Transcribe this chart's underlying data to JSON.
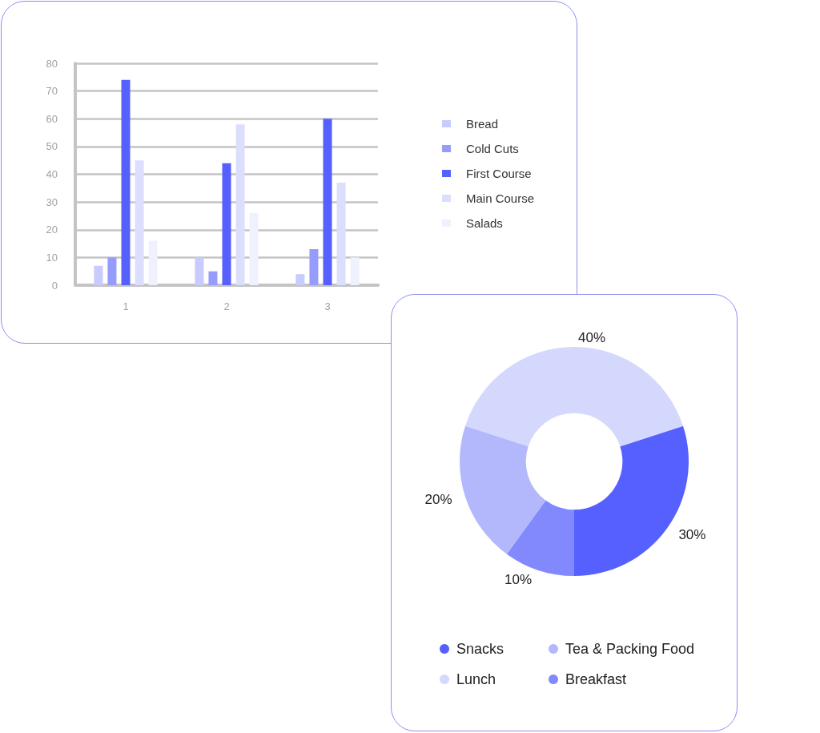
{
  "chart_data": [
    {
      "type": "bar",
      "categories": [
        "1",
        "2",
        "3"
      ],
      "series": [
        {
          "name": "Bread",
          "color": "#c8cbfd",
          "values": [
            7,
            10,
            4
          ]
        },
        {
          "name": "Cold Cuts",
          "color": "#959cfb",
          "values": [
            10,
            5,
            13
          ]
        },
        {
          "name": "First Course",
          "color": "#5560fe",
          "values": [
            74,
            44,
            60
          ]
        },
        {
          "name": "Main Course",
          "color": "#dcdefd",
          "values": [
            45,
            58,
            37
          ]
        },
        {
          "name": "Salads",
          "color": "#f0f1fe",
          "values": [
            16,
            26,
            10
          ]
        }
      ],
      "ylim": [
        0,
        80
      ],
      "yticks": [
        0,
        10,
        20,
        30,
        40,
        50,
        60,
        70,
        80
      ],
      "grid": "y",
      "legend": "right"
    },
    {
      "type": "donut",
      "categories": [
        "Snacks",
        "Lunch",
        "Tea & Packing Food",
        "Breakfast"
      ],
      "values": [
        30,
        40,
        20,
        10
      ],
      "colors": [
        "#5560fe",
        "#d5d8fd",
        "#b3b8fd",
        "#8189fd"
      ],
      "value_labels": [
        "30%",
        "40%",
        "20%",
        "10%"
      ],
      "legend": "bottom"
    }
  ]
}
